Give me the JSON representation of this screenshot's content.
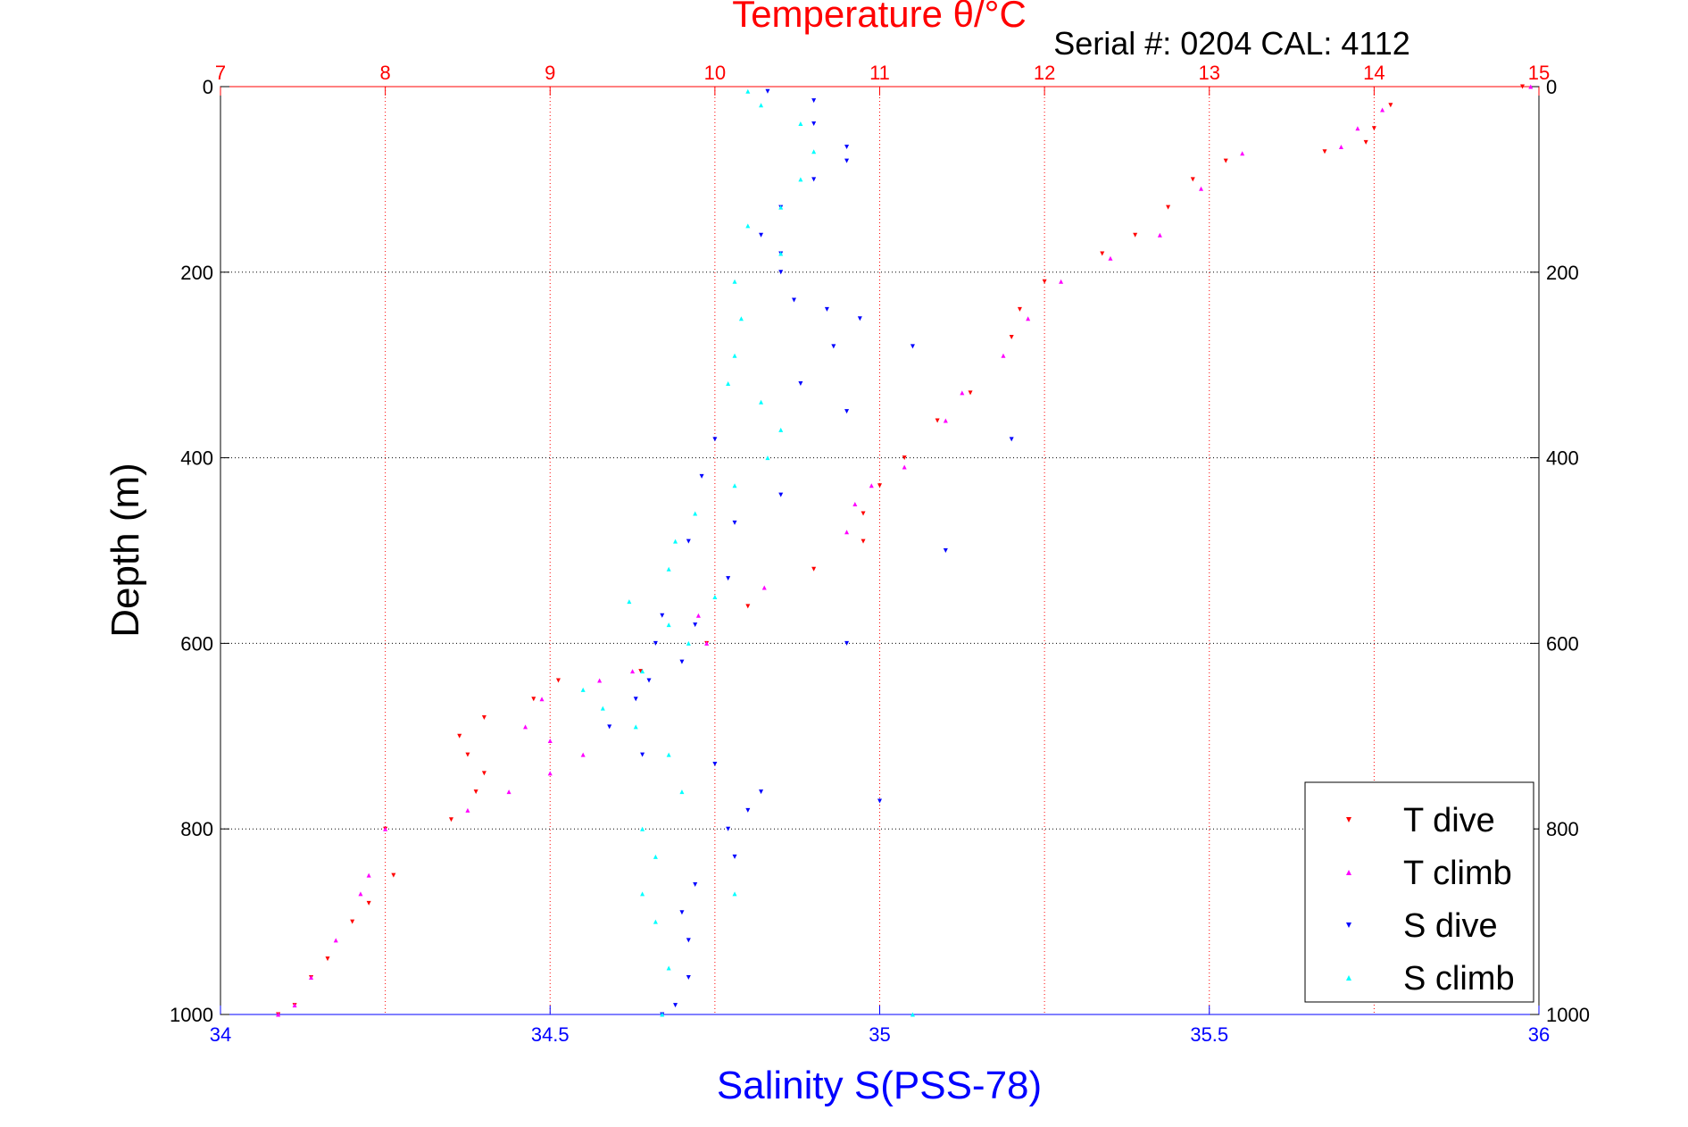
{
  "chart_data": {
    "type": "scatter",
    "title": "Temperature θ/°C",
    "subtitle": "Serial #: 0204  CAL: 4112",
    "ylabel": "Depth (m)",
    "xlabel_bottom": "Salinity S(PSS-78)",
    "ylim": [
      0,
      1000
    ],
    "y_reversed": true,
    "x_bottom": {
      "lim": [
        34,
        36
      ],
      "ticks": [
        34,
        34.5,
        35,
        35.5,
        36
      ],
      "tick_labels": [
        "34",
        "34.5",
        "35",
        "35.5",
        "36"
      ],
      "color": "#0000ff"
    },
    "x_top": {
      "lim": [
        7,
        15
      ],
      "ticks": [
        7,
        8,
        9,
        10,
        11,
        12,
        13,
        14,
        15
      ],
      "tick_labels": [
        "7",
        "8",
        "9",
        "10",
        "11",
        "12",
        "13",
        "14",
        "15"
      ],
      "color": "#ff0000"
    },
    "y_ticks": [
      0,
      200,
      400,
      600,
      800,
      1000
    ],
    "y_tick_labels": [
      "0",
      "200",
      "400",
      "600",
      "800",
      "1000"
    ],
    "grid": true,
    "legend_position": "bottom-right",
    "series": [
      {
        "name": "T dive",
        "axis": "temperature",
        "marker": "triangle-down",
        "color": "#ff0000",
        "points": [
          [
            14.9,
            0
          ],
          [
            14.1,
            20
          ],
          [
            14.0,
            45
          ],
          [
            13.95,
            60
          ],
          [
            13.7,
            70
          ],
          [
            13.1,
            80
          ],
          [
            12.9,
            100
          ],
          [
            12.75,
            130
          ],
          [
            12.55,
            160
          ],
          [
            12.35,
            180
          ],
          [
            12.0,
            210
          ],
          [
            11.85,
            240
          ],
          [
            11.8,
            270
          ],
          [
            11.55,
            330
          ],
          [
            11.35,
            360
          ],
          [
            11.15,
            400
          ],
          [
            11.0,
            430
          ],
          [
            10.9,
            460
          ],
          [
            10.9,
            490
          ],
          [
            10.6,
            520
          ],
          [
            10.2,
            560
          ],
          [
            9.95,
            600
          ],
          [
            9.55,
            630
          ],
          [
            9.05,
            640
          ],
          [
            8.9,
            660
          ],
          [
            8.6,
            680
          ],
          [
            8.45,
            700
          ],
          [
            8.5,
            720
          ],
          [
            8.6,
            740
          ],
          [
            8.55,
            760
          ],
          [
            8.4,
            790
          ],
          [
            8.0,
            800
          ],
          [
            8.05,
            850
          ],
          [
            7.9,
            880
          ],
          [
            7.8,
            900
          ],
          [
            7.65,
            940
          ],
          [
            7.55,
            960
          ],
          [
            7.45,
            990
          ],
          [
            7.35,
            1000
          ]
        ]
      },
      {
        "name": "T climb",
        "axis": "temperature",
        "marker": "triangle-up",
        "color": "#ff00ff",
        "points": [
          [
            14.95,
            0
          ],
          [
            14.05,
            25
          ],
          [
            13.9,
            45
          ],
          [
            13.8,
            65
          ],
          [
            13.2,
            72
          ],
          [
            12.95,
            110
          ],
          [
            12.7,
            160
          ],
          [
            12.4,
            185
          ],
          [
            12.1,
            210
          ],
          [
            11.9,
            250
          ],
          [
            11.75,
            290
          ],
          [
            11.5,
            330
          ],
          [
            11.4,
            360
          ],
          [
            11.15,
            410
          ],
          [
            10.95,
            430
          ],
          [
            10.85,
            450
          ],
          [
            10.8,
            480
          ],
          [
            10.3,
            540
          ],
          [
            9.9,
            570
          ],
          [
            9.95,
            600
          ],
          [
            9.5,
            630
          ],
          [
            9.3,
            640
          ],
          [
            8.95,
            660
          ],
          [
            8.85,
            690
          ],
          [
            9.0,
            705
          ],
          [
            9.2,
            720
          ],
          [
            9.0,
            740
          ],
          [
            8.75,
            760
          ],
          [
            8.5,
            780
          ],
          [
            8.0,
            800
          ],
          [
            7.9,
            850
          ],
          [
            7.85,
            870
          ],
          [
            7.7,
            920
          ],
          [
            7.55,
            960
          ],
          [
            7.45,
            990
          ],
          [
            7.35,
            1000
          ]
        ]
      },
      {
        "name": "S dive",
        "axis": "salinity",
        "marker": "triangle-down",
        "color": "#0000ff",
        "points": [
          [
            34.83,
            5
          ],
          [
            34.9,
            15
          ],
          [
            34.9,
            40
          ],
          [
            34.95,
            65
          ],
          [
            34.95,
            80
          ],
          [
            34.9,
            100
          ],
          [
            34.85,
            130
          ],
          [
            34.82,
            160
          ],
          [
            34.85,
            180
          ],
          [
            34.85,
            200
          ],
          [
            34.87,
            230
          ],
          [
            34.92,
            240
          ],
          [
            34.97,
            250
          ],
          [
            34.93,
            280
          ],
          [
            34.88,
            320
          ],
          [
            34.95,
            350
          ],
          [
            34.75,
            380
          ],
          [
            34.73,
            420
          ],
          [
            34.85,
            440
          ],
          [
            34.78,
            470
          ],
          [
            34.71,
            490
          ],
          [
            34.77,
            530
          ],
          [
            34.67,
            570
          ],
          [
            34.66,
            600
          ],
          [
            34.7,
            620
          ],
          [
            34.65,
            640
          ],
          [
            34.63,
            660
          ],
          [
            34.59,
            690
          ],
          [
            34.64,
            720
          ],
          [
            34.75,
            730
          ],
          [
            34.82,
            760
          ],
          [
            34.8,
            780
          ],
          [
            34.77,
            800
          ],
          [
            34.78,
            830
          ],
          [
            34.72,
            860
          ],
          [
            34.7,
            890
          ],
          [
            34.71,
            920
          ],
          [
            34.71,
            960
          ],
          [
            34.69,
            990
          ],
          [
            34.67,
            1000
          ],
          [
            35.0,
            770
          ],
          [
            35.1,
            500
          ],
          [
            35.2,
            380
          ],
          [
            34.95,
            600
          ],
          [
            34.72,
            580
          ],
          [
            35.05,
            280
          ]
        ]
      },
      {
        "name": "S climb",
        "axis": "salinity",
        "marker": "triangle-up",
        "color": "#00ffff",
        "points": [
          [
            34.8,
            5
          ],
          [
            34.82,
            20
          ],
          [
            34.88,
            40
          ],
          [
            34.9,
            70
          ],
          [
            34.88,
            100
          ],
          [
            34.85,
            130
          ],
          [
            34.8,
            150
          ],
          [
            34.85,
            180
          ],
          [
            34.78,
            210
          ],
          [
            34.79,
            250
          ],
          [
            34.78,
            290
          ],
          [
            34.77,
            320
          ],
          [
            34.82,
            340
          ],
          [
            34.85,
            370
          ],
          [
            34.83,
            400
          ],
          [
            34.78,
            430
          ],
          [
            34.72,
            460
          ],
          [
            34.69,
            490
          ],
          [
            34.68,
            520
          ],
          [
            34.62,
            555
          ],
          [
            34.68,
            580
          ],
          [
            34.71,
            600
          ],
          [
            34.64,
            630
          ],
          [
            34.55,
            650
          ],
          [
            34.58,
            670
          ],
          [
            34.63,
            690
          ],
          [
            34.68,
            720
          ],
          [
            34.7,
            760
          ],
          [
            34.64,
            800
          ],
          [
            34.66,
            830
          ],
          [
            34.64,
            870
          ],
          [
            34.66,
            900
          ],
          [
            34.68,
            950
          ],
          [
            34.67,
            1000
          ],
          [
            35.05,
            1000
          ],
          [
            34.78,
            870
          ],
          [
            34.75,
            550
          ]
        ]
      }
    ]
  }
}
